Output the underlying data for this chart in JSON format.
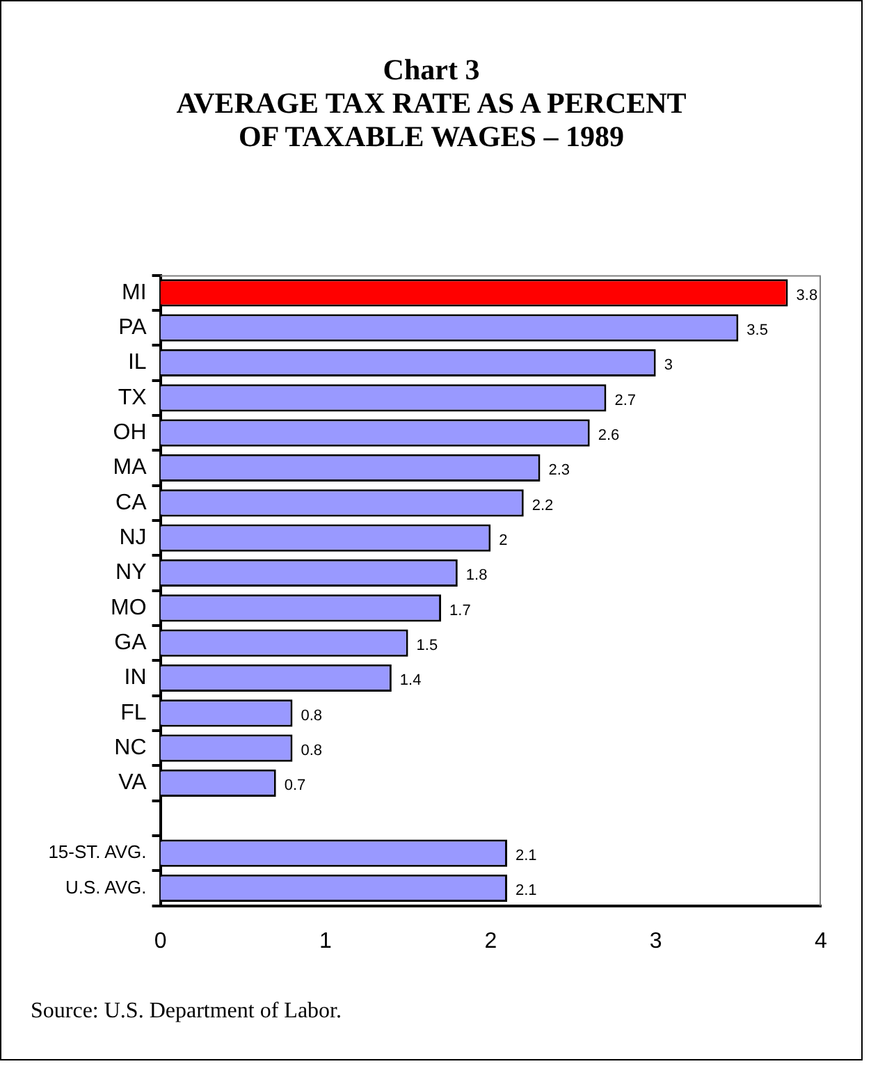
{
  "chart_data": {
    "type": "bar",
    "orientation": "horizontal",
    "title": "Chart 3",
    "subtitle": "AVERAGE TAX RATE AS A PERCENT OF TAXABLE WAGES – 1989",
    "categories": [
      "MI",
      "PA",
      "IL",
      "TX",
      "OH",
      "MA",
      "CA",
      "NJ",
      "NY",
      "MO",
      "GA",
      "IN",
      "FL",
      "NC",
      "VA",
      null,
      "15-ST. AVG.",
      "U.S. AVG."
    ],
    "values": [
      3.8,
      3.5,
      3,
      2.7,
      2.6,
      2.3,
      2.2,
      2,
      1.8,
      1.7,
      1.5,
      1.4,
      0.8,
      0.8,
      0.7,
      null,
      2.1,
      2.1
    ],
    "colors": [
      "#ff0000",
      "#9999ff",
      "#9999ff",
      "#9999ff",
      "#9999ff",
      "#9999ff",
      "#9999ff",
      "#9999ff",
      "#9999ff",
      "#9999ff",
      "#9999ff",
      "#9999ff",
      "#9999ff",
      "#9999ff",
      "#9999ff",
      "#9999ff",
      "#9999ff",
      "#9999ff"
    ],
    "xlim": [
      0,
      4
    ],
    "xticks": [
      0,
      1,
      2,
      3,
      4
    ],
    "grid": false,
    "legend": false,
    "data_labels": true,
    "annotations": [
      "Source:  U.S. Department of Labor."
    ]
  }
}
